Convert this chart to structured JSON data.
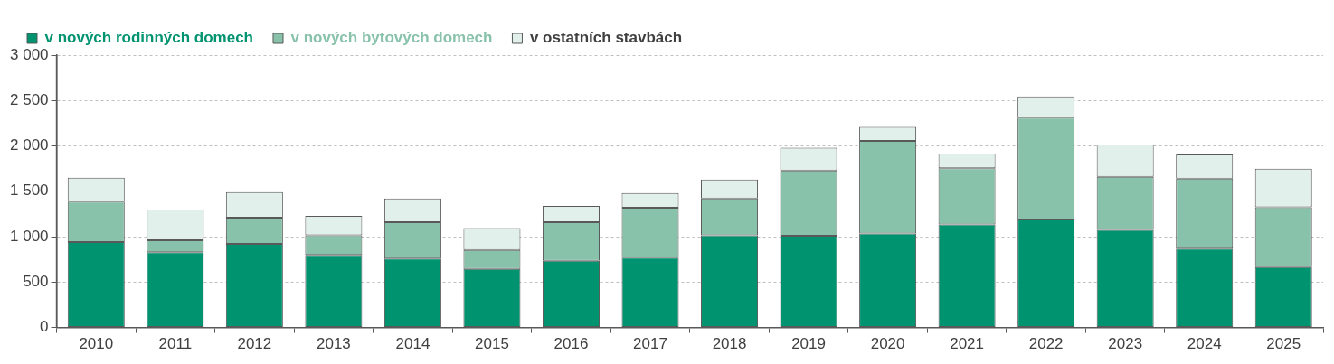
{
  "chart_data": {
    "type": "bar",
    "stacked": true,
    "categories": [
      "2010",
      "2011",
      "2012",
      "2013",
      "2014",
      "2015",
      "2016",
      "2017",
      "2018",
      "2019",
      "2020",
      "2021",
      "2022",
      "2023",
      "2024",
      "2025"
    ],
    "series": [
      {
        "name": "v nových rodinných domech",
        "color": "#009370",
        "values": [
          940,
          830,
          920,
          800,
          760,
          645,
          735,
          770,
          1015,
          1010,
          1035,
          1135,
          1190,
          1075,
          870,
          665
        ]
      },
      {
        "name": "v nových bytových domech",
        "color": "#88c2ab",
        "values": [
          445,
          130,
          290,
          215,
          400,
          210,
          425,
          550,
          405,
          720,
          1020,
          620,
          1120,
          585,
          770,
          660
        ]
      },
      {
        "name": "v ostatních stavbách",
        "color": "#e2f0eb",
        "values": [
          265,
          340,
          280,
          215,
          260,
          240,
          180,
          160,
          210,
          250,
          155,
          160,
          235,
          355,
          265,
          425
        ]
      }
    ],
    "ylim": [
      0,
      3000
    ],
    "yticks": [
      0,
      500,
      {
        "value": 1000,
        "label": "1 000"
      },
      {
        "value": 1500,
        "label": "1 500"
      },
      {
        "value": 2000,
        "label": "2 000"
      },
      {
        "value": 2500,
        "label": "2 500"
      },
      {
        "value": 3000,
        "label": "3 000"
      }
    ],
    "grid": "y",
    "legend": "top left"
  }
}
